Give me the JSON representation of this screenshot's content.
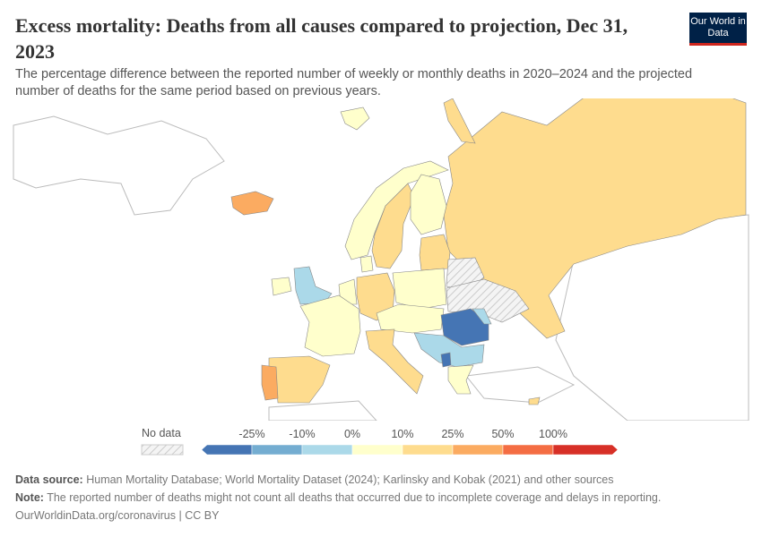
{
  "header": {
    "title": "Excess mortality: Deaths from all causes compared to projection, Dec 31, 2023",
    "subtitle": "The percentage difference between the reported number of weekly or monthly deaths in 2020–2024 and the projected number of deaths for the same period based on previous years.",
    "logo": "Our World in Data"
  },
  "legend": {
    "no_data_label": "No data",
    "ticks": [
      "-25%",
      "-10%",
      "0%",
      "10%",
      "25%",
      "50%",
      "100%"
    ],
    "colors": [
      "#4575b4",
      "#74add1",
      "#abd9e9",
      "#ffffcc",
      "#fedc8e",
      "#fbab61",
      "#f46d43",
      "#d73027"
    ]
  },
  "map_colors": {
    "russia": "#fedc8e",
    "iceland": "#fbab61",
    "portugal": "#fbab61",
    "uk": "#abd9e9",
    "romania": "#4575b4",
    "no_data": "hatched"
  },
  "footer": {
    "source_label": "Data source:",
    "source": "Human Mortality Database; World Mortality Dataset (2024); Karlinsky and Kobak (2021) and other sources",
    "note_label": "Note:",
    "note": "The reported number of deaths might not count all deaths that occurred due to incomplete coverage and delays in reporting.",
    "link": "OurWorldinData.org/coronavirus | CC BY"
  }
}
